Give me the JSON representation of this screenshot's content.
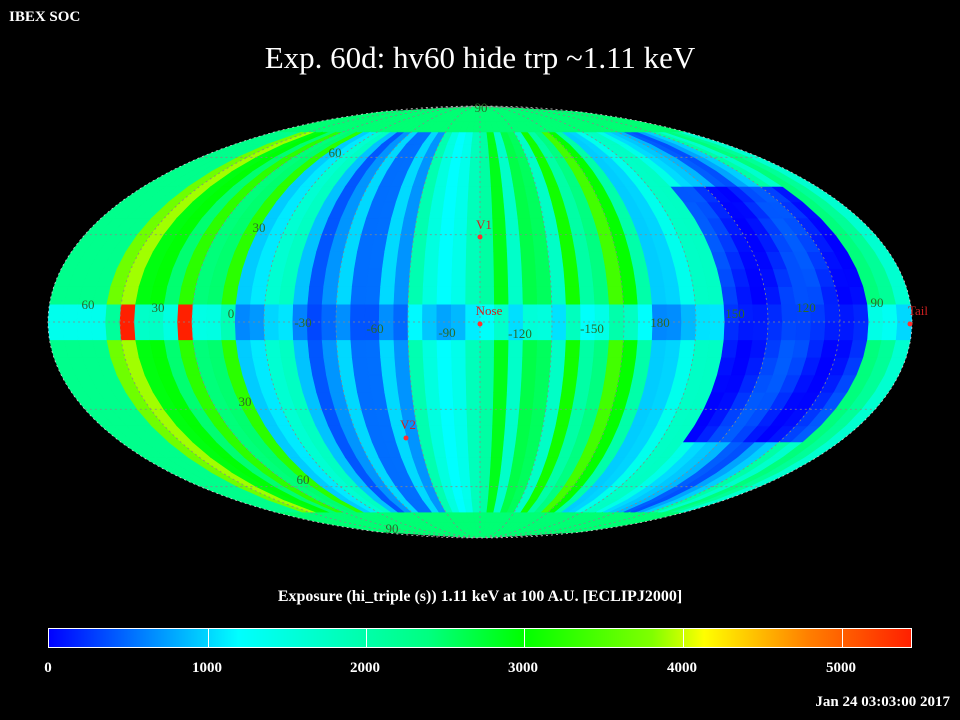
{
  "header": {
    "corner_label": "IBEX SOC",
    "title": "Exp.   60d: hv60 hide trp ~1.11 keV"
  },
  "map": {
    "projection": "mollweide",
    "frame": "ECLIPJ2000",
    "lat_labels_north": [
      "60",
      "30"
    ],
    "lat_labels_south": [
      "30",
      "60"
    ],
    "pole_labels": [
      "90",
      "90"
    ],
    "lon_labels": [
      "60",
      "30",
      "0",
      "-30",
      "-60",
      "-90",
      "-120",
      "-150",
      "180",
      "150",
      "120",
      "90"
    ],
    "markers": [
      {
        "label": "V1"
      },
      {
        "label": "Nose"
      },
      {
        "label": "V2"
      },
      {
        "label": "Tail"
      }
    ],
    "marker_color": "#ff3030"
  },
  "colorbar": {
    "title": "Exposure (hi_triple (s))  1.11 keV at 100 A.U. [ECLIPJ2000]",
    "min": 0,
    "max": 5450,
    "ticks": [
      "0",
      "1000",
      "2000",
      "3000",
      "4000",
      "5000"
    ]
  },
  "timestamp": "Jan 24 03:03:00 2017"
}
